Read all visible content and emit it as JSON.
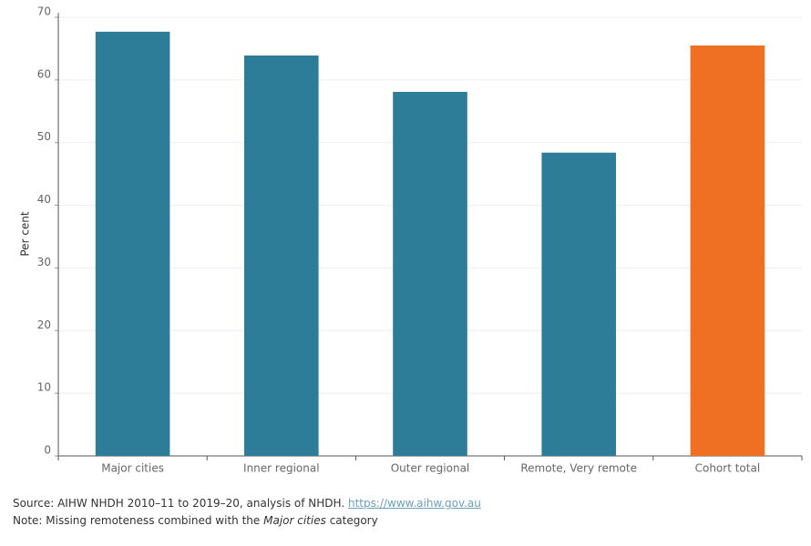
{
  "chart_data": {
    "type": "bar",
    "y_label": "Per cent",
    "categories": [
      "Major cities",
      "Inner regional",
      "Outer regional",
      "Remote, Very remote",
      "Cohort total"
    ],
    "values": [
      67.7,
      63.9,
      58.1,
      48.4,
      65.5
    ],
    "colors": [
      "#2e7d98",
      "#2e7d98",
      "#2e7d98",
      "#2e7d98",
      "#f07023"
    ],
    "ylim": [
      0,
      70
    ],
    "yticks": [
      0,
      10,
      20,
      30,
      40,
      50,
      60,
      70
    ],
    "grid": true
  },
  "footer": {
    "source": "Source: AIHW NHDH 2010–11 to 2019–20, analysis of NHDH.",
    "link": "https://www.aihw.gov.au",
    "note_start": "Note: Missing remoteness combined with the",
    "note_italic": "Major cities",
    "note_end": "category"
  }
}
